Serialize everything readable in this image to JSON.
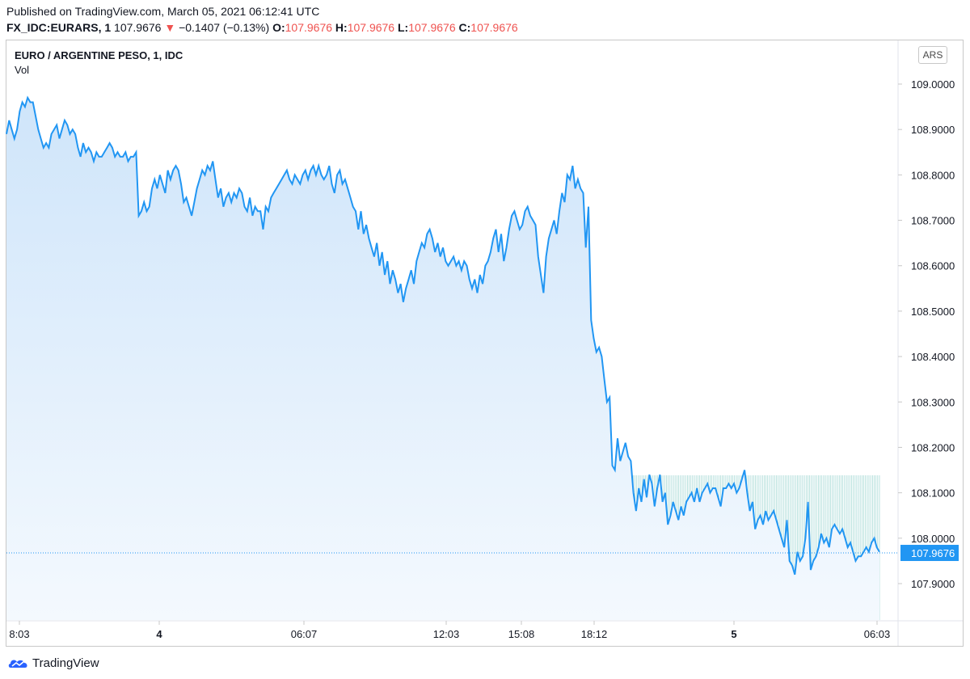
{
  "header": {
    "published": "Published on TradingView.com, March 05, 2021 06:12:41 UTC",
    "symbol_line": "FX_IDC:EURARS, 1",
    "last": "107.9676",
    "change": "−0.1407 (−0.13%)",
    "o_label": "O:",
    "o_value": "107.9676",
    "h_label": "H:",
    "h_value": "107.9676",
    "l_label": "L:",
    "l_value": "107.9676",
    "c_label": "C:",
    "c_value": "107.9676"
  },
  "pane": {
    "title": "EURO / ARGENTINE PESO, 1, IDC",
    "volume_label": "Vol",
    "currency": "ARS"
  },
  "footer": {
    "brand": "TradingView"
  },
  "colors": {
    "line": "#2196f3",
    "area_top": "#cfe5fa",
    "area_bottom": "#f4f9fe",
    "volume": "#9dd6d1",
    "last_price_bg": "#2196f3"
  },
  "chart_data": {
    "type": "area",
    "title": "EURO / ARGENTINE PESO, 1, IDC",
    "xlabel": "",
    "ylabel": "",
    "ylim": [
      107.83,
      109.09
    ],
    "y_ticks": [
      "109.0000",
      "108.9000",
      "108.8000",
      "108.7000",
      "108.6000",
      "108.5000",
      "108.4000",
      "108.3000",
      "108.2000",
      "108.1000",
      "108.0000",
      "107.9000"
    ],
    "x_ticks": [
      {
        "label": "8:03",
        "bold": false
      },
      {
        "label": "4",
        "bold": true
      },
      {
        "label": "06:07",
        "bold": false
      },
      {
        "label": "12:03",
        "bold": false
      },
      {
        "label": "15:08",
        "bold": false
      },
      {
        "label": "18:12",
        "bold": false
      },
      {
        "label": "5",
        "bold": true
      },
      {
        "label": "06:03",
        "bold": false
      }
    ],
    "last_price": "107.9676",
    "grid": false,
    "series": [
      {
        "values": [
          108.89,
          108.92,
          108.9,
          108.88,
          108.9,
          108.94,
          108.96,
          108.95,
          108.97,
          108.96,
          108.96,
          108.93,
          108.9,
          108.88,
          108.86,
          108.87,
          108.86,
          108.89,
          108.9,
          108.91,
          108.88,
          108.9,
          108.92,
          108.91,
          108.89,
          108.9,
          108.89,
          108.86,
          108.84,
          108.87,
          108.85,
          108.86,
          108.85,
          108.83,
          108.85,
          108.84,
          108.84,
          108.85,
          108.86,
          108.87,
          108.86,
          108.84,
          108.85,
          108.84,
          108.84,
          108.85,
          108.83,
          108.84,
          108.84,
          108.85,
          108.71,
          108.72,
          108.74,
          108.72,
          108.73,
          108.77,
          108.79,
          108.77,
          108.8,
          108.78,
          108.76,
          108.81,
          108.79,
          108.81,
          108.82,
          108.81,
          108.78,
          108.74,
          108.75,
          108.73,
          108.71,
          108.74,
          108.77,
          108.79,
          108.81,
          108.8,
          108.82,
          108.81,
          108.83,
          108.79,
          108.75,
          108.77,
          108.73,
          108.75,
          108.76,
          108.74,
          108.76,
          108.75,
          108.77,
          108.76,
          108.73,
          108.72,
          108.75,
          108.71,
          108.73,
          108.72,
          108.72,
          108.68,
          108.73,
          108.72,
          108.75,
          108.76,
          108.77,
          108.78,
          108.79,
          108.8,
          108.81,
          108.79,
          108.78,
          108.8,
          108.79,
          108.78,
          108.8,
          108.81,
          108.79,
          108.81,
          108.82,
          108.8,
          108.82,
          108.8,
          108.79,
          108.8,
          108.82,
          108.78,
          108.76,
          108.8,
          108.81,
          108.78,
          108.79,
          108.77,
          108.75,
          108.73,
          108.72,
          108.68,
          108.72,
          108.67,
          108.69,
          108.66,
          108.64,
          108.62,
          108.65,
          108.6,
          108.63,
          108.58,
          108.61,
          108.56,
          108.59,
          108.57,
          108.54,
          108.56,
          108.52,
          108.55,
          108.57,
          108.59,
          108.56,
          108.61,
          108.63,
          108.65,
          108.64,
          108.67,
          108.68,
          108.66,
          108.63,
          108.65,
          108.62,
          108.64,
          108.61,
          108.6,
          108.61,
          108.62,
          108.6,
          108.61,
          108.59,
          108.61,
          108.6,
          108.57,
          108.55,
          108.57,
          108.54,
          108.58,
          108.56,
          108.6,
          108.61,
          108.63,
          108.66,
          108.68,
          108.63,
          108.67,
          108.61,
          108.64,
          108.68,
          108.71,
          108.72,
          108.7,
          108.68,
          108.69,
          108.72,
          108.73,
          108.71,
          108.7,
          108.69,
          108.62,
          108.58,
          108.54,
          108.62,
          108.66,
          108.68,
          108.7,
          108.67,
          108.72,
          108.76,
          108.74,
          108.8,
          108.79,
          108.82,
          108.77,
          108.79,
          108.77,
          108.76,
          108.64,
          108.73,
          108.48,
          108.44,
          108.41,
          108.42,
          108.4,
          108.35,
          108.3,
          108.31,
          108.16,
          108.15,
          108.22,
          108.17,
          108.19,
          108.21,
          108.18,
          108.17,
          108.1,
          108.06,
          108.11,
          108.08,
          108.13,
          108.09,
          108.14,
          108.12,
          108.07,
          108.11,
          108.14,
          108.08,
          108.1,
          108.03,
          108.05,
          108.08,
          108.06,
          108.04,
          108.07,
          108.05,
          108.08,
          108.09,
          108.1,
          108.08,
          108.11,
          108.08,
          108.1,
          108.11,
          108.12,
          108.1,
          108.11,
          108.11,
          108.09,
          108.07,
          108.11,
          108.11,
          108.12,
          108.11,
          108.12,
          108.1,
          108.11,
          108.13,
          108.15,
          108.1,
          108.06,
          108.08,
          108.02,
          108.04,
          108.05,
          108.03,
          108.06,
          108.04,
          108.05,
          108.06,
          108.04,
          108.02,
          108.0,
          107.98,
          108.04,
          107.95,
          107.94,
          107.92,
          107.97,
          107.95,
          107.96,
          108.0,
          108.08,
          107.93,
          107.95,
          107.96,
          107.98,
          108.01,
          107.99,
          108.0,
          107.98,
          108.02,
          108.03,
          108.02,
          108.01,
          108.02,
          108.0,
          107.98,
          107.99,
          107.97,
          107.95,
          107.96,
          107.96,
          107.97,
          107.98,
          107.97,
          107.99,
          108.0,
          107.98,
          107.97
        ]
      }
    ],
    "volume": {
      "bars": 500,
      "level": 0.27
    }
  }
}
